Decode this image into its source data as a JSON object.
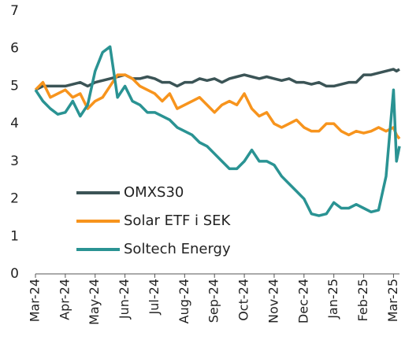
{
  "chart_data": {
    "type": "line",
    "x": [
      0,
      0.25,
      0.5,
      0.75,
      1,
      1.25,
      1.5,
      1.75,
      2,
      2.25,
      2.5,
      2.75,
      3,
      3.25,
      3.5,
      3.75,
      4,
      4.25,
      4.5,
      4.75,
      5,
      5.25,
      5.5,
      5.75,
      6,
      6.25,
      6.5,
      6.75,
      7,
      7.25,
      7.5,
      7.75,
      8,
      8.25,
      8.5,
      8.75,
      9,
      9.25,
      9.5,
      9.75,
      10,
      10.25,
      10.5,
      10.75,
      11,
      11.25,
      11.5,
      11.75,
      12,
      12.1,
      12.2
    ],
    "series": [
      {
        "name": "OMXS30",
        "color": "#3b5456",
        "values": [
          4.9,
          5.0,
          5.0,
          5.0,
          5.0,
          5.05,
          5.1,
          5.0,
          5.1,
          5.15,
          5.2,
          5.25,
          5.3,
          5.2,
          5.2,
          5.25,
          5.2,
          5.1,
          5.1,
          5.0,
          5.1,
          5.1,
          5.2,
          5.15,
          5.2,
          5.1,
          5.2,
          5.25,
          5.3,
          5.25,
          5.2,
          5.25,
          5.2,
          5.15,
          5.2,
          5.1,
          5.1,
          5.05,
          5.1,
          5.0,
          5.0,
          5.05,
          5.1,
          5.1,
          5.3,
          5.3,
          5.35,
          5.4,
          5.45,
          5.4,
          5.45
        ]
      },
      {
        "name": "Solar ETF i SEK",
        "color": "#f7941d",
        "values": [
          4.9,
          5.1,
          4.7,
          4.8,
          4.9,
          4.7,
          4.8,
          4.4,
          4.6,
          4.7,
          5.0,
          5.3,
          5.3,
          5.2,
          5.0,
          4.9,
          4.8,
          4.6,
          4.8,
          4.4,
          4.5,
          4.6,
          4.7,
          4.5,
          4.3,
          4.5,
          4.6,
          4.5,
          4.8,
          4.4,
          4.2,
          4.3,
          4.0,
          3.9,
          4.0,
          4.1,
          3.9,
          3.8,
          3.8,
          4.0,
          4.0,
          3.8,
          3.7,
          3.8,
          3.75,
          3.8,
          3.9,
          3.8,
          3.9,
          3.7,
          3.6
        ]
      },
      {
        "name": "Soltech Energy",
        "color": "#2a9393",
        "values": [
          4.9,
          4.6,
          4.4,
          4.25,
          4.3,
          4.6,
          4.2,
          4.5,
          5.4,
          5.9,
          6.05,
          4.7,
          5.0,
          4.6,
          4.5,
          4.3,
          4.3,
          4.2,
          4.1,
          3.9,
          3.8,
          3.7,
          3.5,
          3.4,
          3.2,
          3.0,
          2.8,
          2.8,
          3.0,
          3.3,
          3.0,
          3.0,
          2.9,
          2.6,
          2.4,
          2.2,
          2.0,
          1.6,
          1.55,
          1.6,
          1.9,
          1.75,
          1.75,
          1.85,
          1.75,
          1.65,
          1.7,
          2.6,
          4.9,
          3.0,
          3.4
        ]
      }
    ],
    "xlim": [
      0,
      12.2
    ],
    "xticks": [
      {
        "value": 0,
        "label": "Mar-24"
      },
      {
        "value": 1,
        "label": "Apr-24"
      },
      {
        "value": 2,
        "label": "May-24"
      },
      {
        "value": 3,
        "label": "Jun-24"
      },
      {
        "value": 4,
        "label": "Jul-24"
      },
      {
        "value": 5,
        "label": "Aug-24"
      },
      {
        "value": 6,
        "label": "Sep-24"
      },
      {
        "value": 7,
        "label": "Oct-24"
      },
      {
        "value": 8,
        "label": "Nov-24"
      },
      {
        "value": 9,
        "label": "Dec-24"
      },
      {
        "value": 10,
        "label": "Jan-25"
      },
      {
        "value": 11,
        "label": "Feb-25"
      },
      {
        "value": 12,
        "label": "Mar-25"
      }
    ],
    "ylim": [
      0,
      7
    ],
    "yticks": [
      0,
      1,
      2,
      3,
      4,
      5,
      6,
      7
    ],
    "grid": false,
    "legend": "center left"
  }
}
